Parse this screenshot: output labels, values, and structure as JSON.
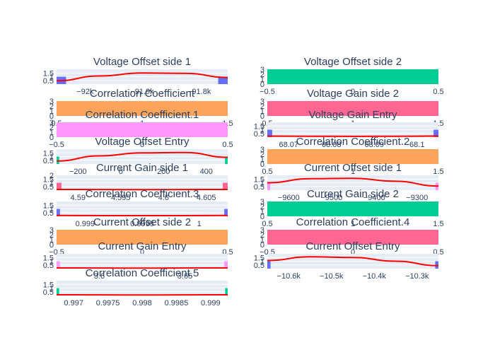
{
  "chart_data": [
    {
      "title": "Voltage Offset side 1",
      "type": "histogram",
      "bar_color": "#636efa",
      "x_ticks": [
        "−92k",
        "−91.9k",
        "−91.8k"
      ],
      "y_ticks": [
        "0.5",
        "1",
        "1.5"
      ],
      "xlim": [
        -92130,
        -91770
      ],
      "ylim": [
        0,
        2
      ],
      "bars": [
        {
          "x0": -92130,
          "x1": -92110,
          "y": 1
        },
        {
          "x0": -91790,
          "x1": -91770,
          "y": 1
        }
      ],
      "curve": {
        "x": [
          -92130,
          -92040,
          -91950,
          -91860,
          -91770
        ],
        "y": [
          0.45,
          1.1,
          1.5,
          1.45,
          0.9
        ]
      }
    },
    {
      "title": "Voltage Offset side 2",
      "type": "bar",
      "bar_color": "#00cc96",
      "x_ticks": [
        "−0.5",
        "0",
        "0.5"
      ],
      "y_ticks": [
        "0",
        "1",
        "2",
        "3"
      ],
      "xlim": [
        -0.5,
        0.5
      ],
      "ylim": [
        0,
        3
      ],
      "bars": [
        {
          "x0": -0.5,
          "x1": 0.5,
          "y": 3
        }
      ]
    },
    {
      "title": "Correlation Coefficient",
      "type": "bar",
      "bar_color": "#fca45c",
      "x_ticks": [
        "0.5",
        "1",
        "1.5"
      ],
      "y_ticks": [
        "0",
        "1",
        "2",
        "3"
      ],
      "xlim": [
        0.5,
        1.5
      ],
      "ylim": [
        0,
        3
      ],
      "bars": [
        {
          "x0": 0.5,
          "x1": 1.5,
          "y": 3
        }
      ]
    },
    {
      "title": "Voltage Gain side 2",
      "type": "bar",
      "bar_color": "#ff6692",
      "x_ticks": [
        "0.5",
        "1",
        "1.5"
      ],
      "y_ticks": [
        "0",
        "1",
        "2",
        "3"
      ],
      "xlim": [
        0.5,
        1.5
      ],
      "ylim": [
        0,
        3
      ],
      "bars": [
        {
          "x0": 0.5,
          "x1": 1.5,
          "y": 3
        }
      ]
    },
    {
      "title": "Correlation Coefficient.1",
      "type": "bar",
      "bar_color": "#ff97ff",
      "x_ticks": [
        "−0.5",
        "0",
        "0.5"
      ],
      "y_ticks": [
        "0",
        "1",
        "2",
        "3"
      ],
      "xlim": [
        -0.5,
        0.5
      ],
      "ylim": [
        0,
        3
      ],
      "bars": [
        {
          "x0": -0.5,
          "x1": 0.5,
          "y": 3
        }
      ]
    },
    {
      "title": "Voltage Gain Entry",
      "type": "histogram",
      "bar_color": "#636efa",
      "x_ticks": [
        "68.07",
        "68.08",
        "68.09",
        "68.1"
      ],
      "y_ticks": [
        "0.5",
        "1",
        "1.5"
      ],
      "xlim": [
        68.0675,
        68.1025
      ],
      "ylim": [
        0,
        2
      ],
      "bars": [
        {
          "x0": 68.0675,
          "x1": 68.0685,
          "y": 1
        },
        {
          "x0": 68.1015,
          "x1": 68.1025,
          "y": 1
        }
      ],
      "curve": {
        "x": [
          68.0675,
          68.076,
          68.085,
          68.094,
          68.1025
        ],
        "y": [
          0.15,
          0.12,
          0.11,
          0.12,
          0.15
        ]
      }
    },
    {
      "title": "Voltage Offset Entry",
      "type": "histogram",
      "bar_color": "#00cc96",
      "x_ticks": [
        "−200",
        "0",
        "200",
        "400"
      ],
      "y_ticks": [
        "0.5",
        "1",
        "1.5"
      ],
      "xlim": [
        -400,
        560
      ],
      "ylim": [
        0,
        2
      ],
      "bars": [
        {
          "x0": -400,
          "x1": -385,
          "y": 1
        },
        {
          "x0": 545,
          "x1": 560,
          "y": 1
        }
      ],
      "curve": {
        "x": [
          -400,
          -160,
          80,
          320,
          560
        ],
        "y": [
          0.4,
          1.1,
          1.5,
          1.55,
          0.9
        ]
      }
    },
    {
      "title": "Correlation Coefficient.2",
      "type": "bar",
      "bar_color": "#fca45c",
      "x_ticks": [
        "0.5",
        "1",
        "1.5"
      ],
      "y_ticks": [
        "0",
        "1",
        "2",
        "3"
      ],
      "xlim": [
        0.5,
        1.5
      ],
      "ylim": [
        0,
        3
      ],
      "bars": [
        {
          "x0": 0.5,
          "x1": 1.5,
          "y": 3
        }
      ]
    },
    {
      "title": "Current Gain side 1",
      "type": "histogram",
      "bar_color": "#ff6692",
      "x_ticks": [
        "4.59",
        "4.595",
        "4.6",
        "4.605"
      ],
      "y_ticks": [
        "0.5",
        "1",
        "1.5",
        "2"
      ],
      "xlim": [
        4.5895,
        4.6068
      ],
      "ylim": [
        0,
        2
      ],
      "bars": [
        {
          "x0": 4.5895,
          "x1": 4.59,
          "y": 1
        },
        {
          "x0": 4.6063,
          "x1": 4.6068,
          "y": 1
        }
      ],
      "curve": {
        "x": [
          4.5895,
          4.594,
          4.5982,
          4.6025,
          4.6068
        ],
        "y": [
          0.1,
          0.08,
          0.07,
          0.08,
          0.1
        ]
      }
    },
    {
      "title": "Current Offset side 1",
      "type": "histogram",
      "bar_color": "#ff97ff",
      "x_ticks": [
        "−9600",
        "−9500",
        "−9400",
        "−9300"
      ],
      "y_ticks": [
        "0.5",
        "1",
        "1.5"
      ],
      "xlim": [
        -9615,
        -9200
      ],
      "ylim": [
        0,
        2
      ],
      "bars": [
        {
          "x0": -9615,
          "x1": -9608,
          "y": 1
        },
        {
          "x0": -9207,
          "x1": -9200,
          "y": 1
        }
      ],
      "curve": {
        "x": [
          -9615,
          -9510,
          -9408,
          -9305,
          -9200
        ],
        "y": [
          1.0,
          1.55,
          1.6,
          1.2,
          0.55
        ]
      }
    },
    {
      "title": "Correlation Coefficient.3",
      "type": "histogram",
      "bar_color": "#636efa",
      "x_ticks": [
        "0.999",
        "0.9995",
        "1"
      ],
      "y_ticks": [
        "0.5",
        "1",
        "1.5"
      ],
      "xlim": [
        0.999,
        1.0
      ],
      "ylim": [
        0,
        2
      ],
      "bars": [
        {
          "x0": 0.999,
          "x1": 0.99902,
          "y": 1
        },
        {
          "x0": 0.99998,
          "x1": 1.0,
          "y": 1
        }
      ],
      "curve": {
        "x": [
          0.999,
          0.99925,
          0.9995,
          0.99975,
          1.0
        ],
        "y": [
          0.12,
          0.1,
          0.09,
          0.1,
          0.12
        ]
      }
    },
    {
      "title": "Current Gain side 2",
      "type": "bar",
      "bar_color": "#00cc96",
      "x_ticks": [
        "0.5",
        "1",
        "1.5"
      ],
      "y_ticks": [
        "0",
        "1",
        "2",
        "3"
      ],
      "xlim": [
        0.5,
        1.5
      ],
      "ylim": [
        0,
        3
      ],
      "bars": [
        {
          "x0": 0.5,
          "x1": 1.5,
          "y": 3
        }
      ]
    },
    {
      "title": "Current Offset side 2",
      "type": "bar",
      "bar_color": "#fca45c",
      "x_ticks": [
        "−0.5",
        "0",
        "0.5"
      ],
      "y_ticks": [
        "0",
        "1",
        "2",
        "3"
      ],
      "xlim": [
        -0.5,
        0.5
      ],
      "ylim": [
        0,
        3
      ],
      "bars": [
        {
          "x0": -0.5,
          "x1": 0.5,
          "y": 3
        }
      ]
    },
    {
      "title": "Correlation Coefficient.4",
      "type": "bar",
      "bar_color": "#ff6692",
      "x_ticks": [
        "−0.5",
        "0",
        "0.5"
      ],
      "y_ticks": [
        "0",
        "1",
        "2",
        "3"
      ],
      "xlim": [
        -0.5,
        0.5
      ],
      "ylim": [
        0,
        3
      ],
      "bars": [
        {
          "x0": -0.5,
          "x1": 0.5,
          "y": 3
        }
      ]
    },
    {
      "title": "Current Gain Entry",
      "type": "histogram",
      "bar_color": "#ff97ff",
      "x_ticks": [
        "3.6",
        "3.65"
      ],
      "y_ticks": [
        "0.5",
        "1",
        "1.5"
      ],
      "xlim": [
        3.55,
        3.7
      ],
      "ylim": [
        0,
        2
      ],
      "bars": [
        {
          "x0": 3.55,
          "x1": 3.553,
          "y": 1
        },
        {
          "x0": 3.697,
          "x1": 3.7,
          "y": 1
        }
      ],
      "curve": {
        "x": [
          3.55,
          3.5875,
          3.625,
          3.6625,
          3.7
        ],
        "y": [
          0.1,
          0.08,
          0.07,
          0.08,
          0.1
        ]
      }
    },
    {
      "title": "Current Offset Entry",
      "type": "histogram",
      "bar_color": "#636efa",
      "x_ticks": [
        "−10.6k",
        "−10.5k",
        "−10.4k",
        "−10.3k"
      ],
      "y_ticks": [
        "0.5",
        "1",
        "1.5"
      ],
      "xlim": [
        -10620,
        -10200
      ],
      "ylim": [
        0,
        2
      ],
      "bars": [
        {
          "x0": -10620,
          "x1": -10612,
          "y": 1
        },
        {
          "x0": -10208,
          "x1": -10200,
          "y": 1
        }
      ],
      "curve": {
        "x": [
          -10620,
          -10515,
          -10410,
          -10305,
          -10200
        ],
        "y": [
          1.1,
          1.6,
          1.5,
          1.0,
          0.4
        ]
      }
    },
    {
      "title": "Correlation Coefficient.5",
      "type": "histogram",
      "bar_color": "#00cc96",
      "x_ticks": [
        "0.997",
        "0.9975",
        "0.998",
        "0.9985",
        "0.999"
      ],
      "y_ticks": [
        "0.5",
        "1",
        "1.5"
      ],
      "xlim": [
        0.997,
        0.999
      ],
      "ylim": [
        0,
        2
      ],
      "bars": [
        {
          "x0": 0.997,
          "x1": 0.99703,
          "y": 1
        },
        {
          "x0": 0.99897,
          "x1": 0.999,
          "y": 1
        }
      ],
      "curve": {
        "x": [
          0.997,
          0.9975,
          0.998,
          0.9985,
          0.999
        ],
        "y": [
          0.1,
          0.08,
          0.07,
          0.08,
          0.1
        ]
      }
    }
  ],
  "style": {
    "plot_bg": "#e5ecf6",
    "grid": "#ffffff",
    "curve_color": "#ff0000",
    "text_color": "#2a3f5f"
  }
}
